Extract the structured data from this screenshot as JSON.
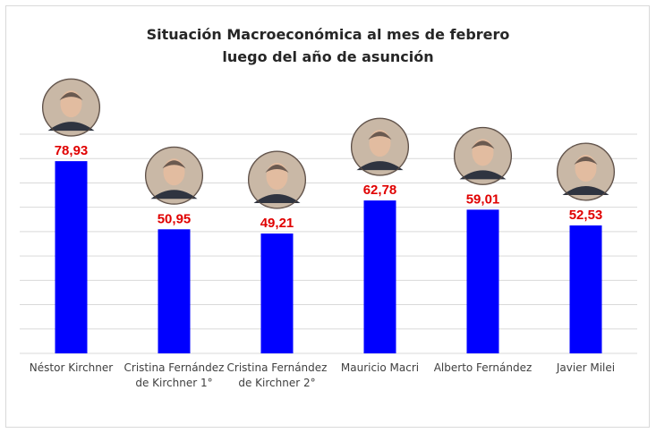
{
  "chart_data": {
    "type": "bar",
    "title": "Situación Macroeconómica al mes de febrero",
    "subtitle": "luego del año de asunción",
    "categories": [
      [
        "Néstor Kirchner"
      ],
      [
        "Cristina Fernández",
        "de Kirchner 1°"
      ],
      [
        "Cristina Fernández",
        "de Kirchner 2°"
      ],
      [
        "Mauricio Macri"
      ],
      [
        "Alberto Fernández"
      ],
      [
        "Javier Milei"
      ]
    ],
    "values": [
      78.93,
      50.95,
      49.21,
      62.78,
      59.01,
      52.53
    ],
    "value_labels": [
      "78,93",
      "50,95",
      "49,21",
      "62,78",
      "59,01",
      "52,53"
    ],
    "ylim": [
      0,
      90
    ],
    "grid": true,
    "legend": "none",
    "colors": {
      "bar": "#0000ff",
      "label": "#e00000",
      "grid": "#d9d9d9",
      "avatar": "#6b5a50"
    }
  }
}
